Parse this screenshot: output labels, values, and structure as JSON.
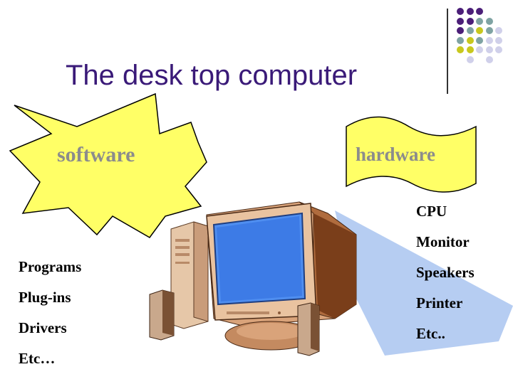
{
  "slide": {
    "title": "The desk top computer",
    "software_label": "software",
    "hardware_label": "hardware",
    "software_items": [
      "Programs",
      "Plug-ins",
      "Drivers",
      "Etc…"
    ],
    "hardware_items": [
      "CPU",
      "Monitor",
      "Speakers",
      "Printer",
      "Etc.."
    ]
  },
  "colors": {
    "title": "#3a1a78",
    "shape_fill": "#ffff66",
    "shape_label": "#8c8c8c",
    "dot_purple": "#4b1e78",
    "dot_teal": "#7fa3a3",
    "dot_olive": "#c8c81e",
    "dot_lavender": "#d0d0ea"
  },
  "decoration": {
    "dot_grid": [
      [
        "purple",
        "purple",
        "purple",
        "",
        ""
      ],
      [
        "purple",
        "purple",
        "teal",
        "teal",
        ""
      ],
      [
        "purple",
        "teal",
        "olive",
        "teal",
        "lavender"
      ],
      [
        "teal",
        "olive",
        "teal",
        "lavender",
        "lavender"
      ],
      [
        "olive",
        "olive",
        "lavender",
        "lavender",
        "lavender"
      ],
      [
        "",
        "lavender",
        "",
        "lavender",
        ""
      ]
    ]
  },
  "illustration": {
    "icon": "desktop-computer-icon"
  }
}
